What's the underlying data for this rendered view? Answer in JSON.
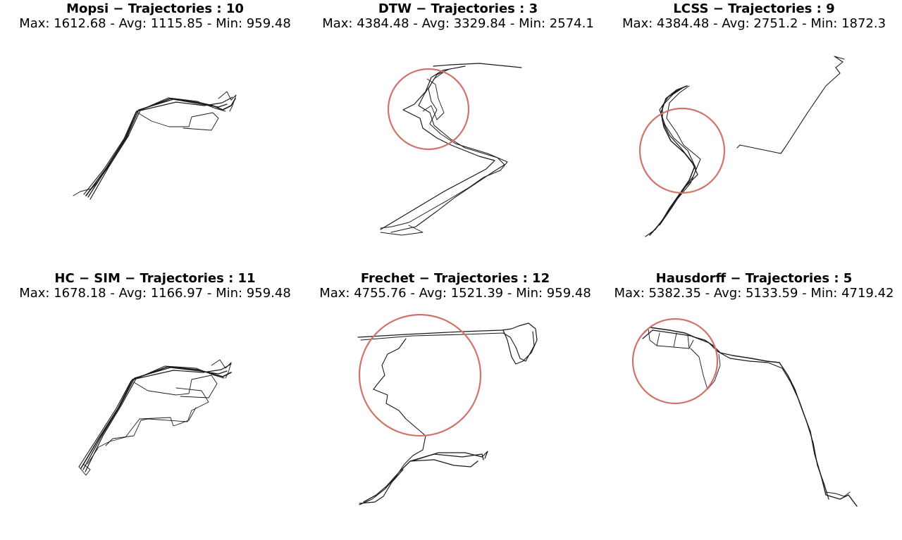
{
  "panels": [
    {
      "title": "Mopsi − Trajectories : 10",
      "stats": "Max: 1612.68 - Avg: 1115.85 - Min: 959.48"
    },
    {
      "title": "DTW − Trajectories : 3",
      "stats": "Max: 4384.48 - Avg: 3329.84 - Min: 2574.1"
    },
    {
      "title": "LCSS − Trajectories : 9",
      "stats": "Max: 4384.48 - Avg: 2751.2 - Min: 1872.3"
    },
    {
      "title": "HC − SIM − Trajectories : 11",
      "stats": "Max: 1678.18 - Avg: 1166.97 - Min: 959.48"
    },
    {
      "title": "Frechet − Trajectories : 12",
      "stats": "Max: 4755.76 - Avg: 1521.39 - Min: 959.48"
    },
    {
      "title": "Hausdorff − Trajectories : 5",
      "stats": "Max: 5382.35 - Avg: 5133.59 - Min: 4719.42"
    }
  ],
  "colors": {
    "trajectory": "#1a1a1a",
    "highlight": "#d0736a"
  }
}
